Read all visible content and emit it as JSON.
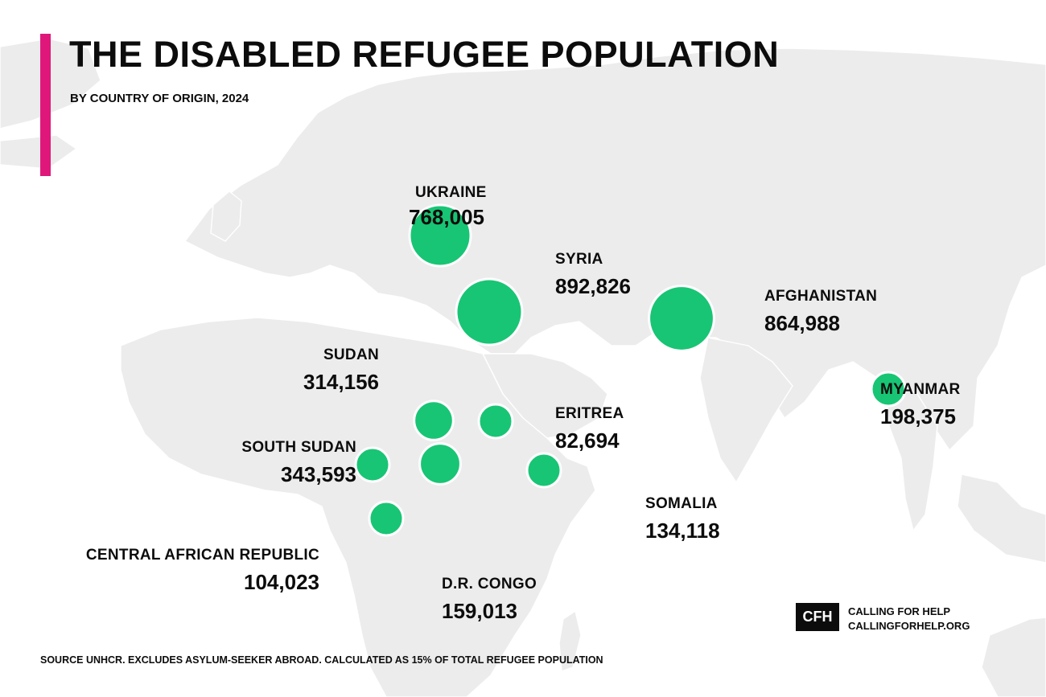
{
  "title": "THE DISABLED REFUGEE POPULATION",
  "subtitle": "BY COUNTRY OF ORIGIN, 2024",
  "source_note": "SOURCE UNHCR. EXCLUDES ASYLUM-SEEKER ABROAD. CALCULATED AS 15% OF TOTAL REFUGEE POPULATION",
  "brand": {
    "logo_text": "CFH",
    "name": "CALLING FOR HELP",
    "url": "CALLINGFORHELP.ORG"
  },
  "colors": {
    "accent": "#e0177a",
    "bubble": "#18c574",
    "land": "#ececec",
    "text": "#0c0c0c"
  },
  "map": {
    "projection": "world basemap",
    "land_color": "#ececec"
  },
  "countries": [
    {
      "name": "UKRAINE",
      "value": 768005,
      "label": "768,005"
    },
    {
      "name": "SYRIA",
      "value": 892826,
      "label": "892,826"
    },
    {
      "name": "AFGHANISTAN",
      "value": 864988,
      "label": "864,988"
    },
    {
      "name": "MYANMAR",
      "value": 198375,
      "label": "198,375"
    },
    {
      "name": "SUDAN",
      "value": 314156,
      "label": "314,156"
    },
    {
      "name": "ERITREA",
      "value": 82694,
      "label": "82,694"
    },
    {
      "name": "SOUTH SUDAN",
      "value": 343593,
      "label": "343,593"
    },
    {
      "name": "SOMALIA",
      "value": 134118,
      "label": "134,118"
    },
    {
      "name": "CENTRAL AFRICAN REPUBLIC",
      "value": 104023,
      "label": "104,023"
    },
    {
      "name": "D.R. CONGO",
      "value": 159013,
      "label": "159,013"
    }
  ]
}
